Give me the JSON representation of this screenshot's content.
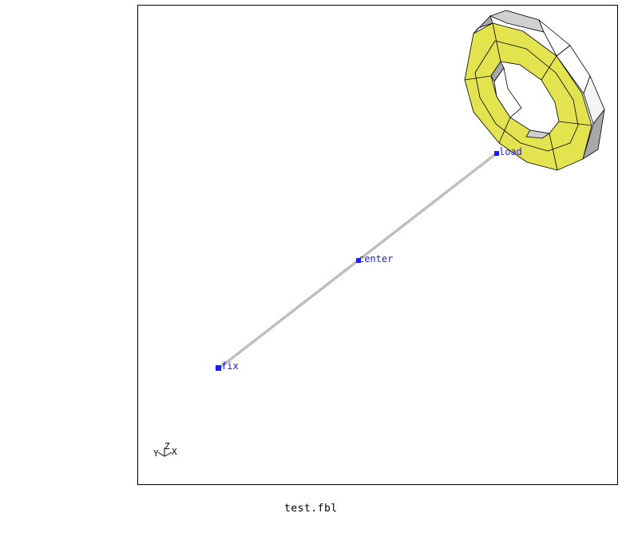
{
  "viewport": {
    "points": [
      {
        "id": "load",
        "label": "load"
      },
      {
        "id": "center",
        "label": "center"
      },
      {
        "id": "fix",
        "label": "fix"
      }
    ],
    "triad": {
      "y_label": "Y",
      "z_label": "Z",
      "x_label": "X"
    },
    "colors": {
      "ring_face": "#e3e350",
      "ring_side_light": "#ffffff",
      "ring_side_mid": "#d0d0d0",
      "ring_side_dark": "#a8a8a8",
      "beam": "#a0a0a0",
      "point_marker": "#1a1aff",
      "edge": "#000000"
    }
  },
  "status": {
    "filename": "test.fbl"
  }
}
